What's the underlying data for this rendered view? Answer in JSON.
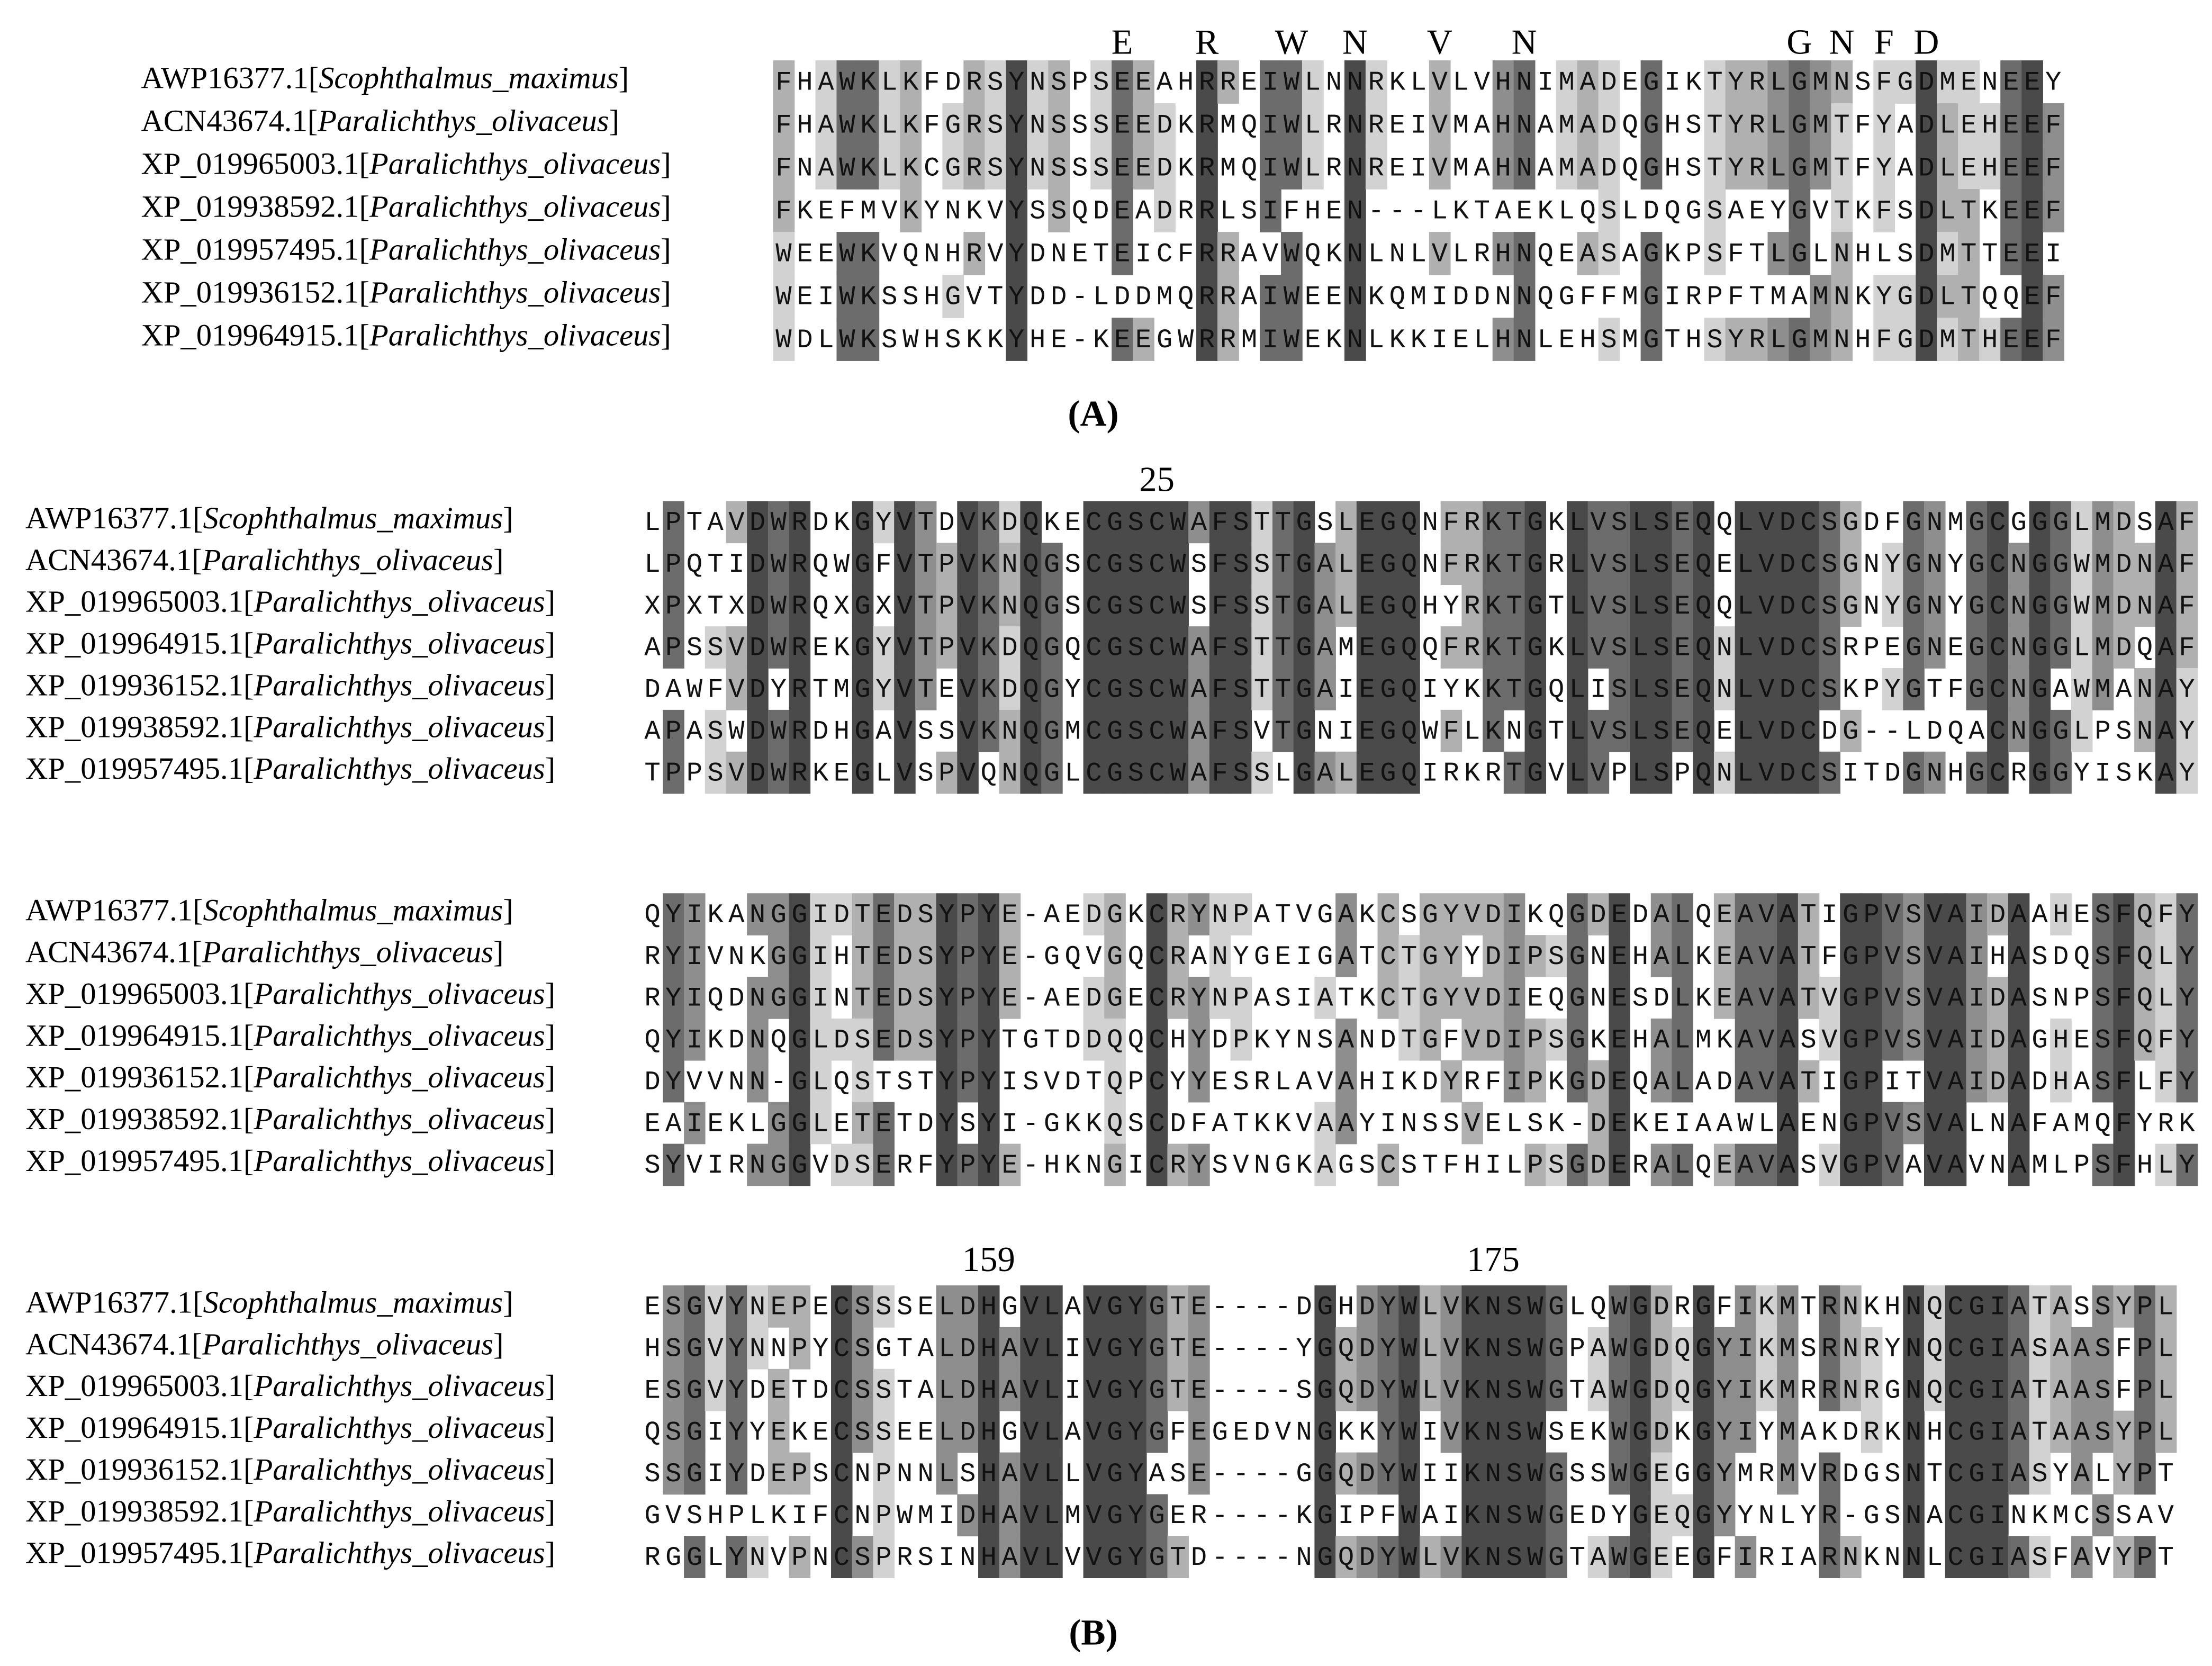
{
  "panels": [
    {
      "label": "(A)",
      "blocks": [
        {
          "annotations": [
            "E",
            "R",
            "W",
            "N",
            "V",
            "N",
            "G",
            "N",
            "F",
            "D"
          ],
          "rows": [
            {
              "name": [
                "AWP16377.1[",
                "Scophthalmus_maximus",
                "]"
              ],
              "sequence": "FHAWKLKFDRSYNSPSEEAHRREIWLNNRKLVLVHNIMADEGIKTYRLGMNSFGDMENEEY"
            },
            {
              "name": [
                "ACN43674.1[",
                "Paralichthys_olivaceus",
                "]"
              ],
              "sequence": "FHAWKLKFGRSYNSSSEEDKRMQIWLRNREIVMAHNAMADQGHSTYRLGMTFYADLEHEEF"
            },
            {
              "name": [
                "XP_019965003.1[",
                "Paralichthys_olivaceus",
                "]"
              ],
              "sequence": "FNAWKLKCGRSYNSSSEEDKRMQIWLRNREIVMAHNAMADQGHSTYRLGMTFYADLEHEEF"
            },
            {
              "name": [
                "XP_019938592.1[",
                "Paralichthys_olivaceus",
                "]"
              ],
              "sequence": "FKEFMVKYNKVYSSQDEADRRLSIFHEN---LKTAEKLQSLDQGSAEYGVTKFSDLTKEEF"
            },
            {
              "name": [
                "XP_019957495.1[",
                "Paralichthys_olivaceus",
                "]"
              ],
              "sequence": "WEEWKVQNHRVYDNETEICFRRAVWQKNLNLVLRHNQEASAGKPSFTLGLNHLSDMTTEEI"
            },
            {
              "name": [
                "XP_019936152.1[",
                "Paralichthys_olivaceus",
                "]"
              ],
              "sequence": "WEIWKSSHGVTYDD-LDDMQRRAIWEENKQMIDDNNQGFFMGIRPFTMAMNKYGDLTQQEF"
            },
            {
              "name": [
                "XP_019964915.1[",
                "Paralichthys_olivaceus",
                "]"
              ],
              "sequence": "WDLWKSWHSKKYHE-KEEGWRRMIWEKNLKKIELHNLEHSMGTHSYRLGMNHFGDMTHEEF"
            }
          ]
        }
      ]
    },
    {
      "label": "(B)",
      "blocks": [
        {
          "annotations": [
            "25"
          ],
          "rows": [
            {
              "name": [
                "AWP16377.1[",
                "Scophthalmus_maximus",
                "]"
              ],
              "sequence": "LPTAVDWRDKGYVTDVKDQKECGSCWAFSTTGSLEGQNFRKTGKLVSLSEQQLVDCSGDFGNMGCGGGLMDSAF"
            },
            {
              "name": [
                "ACN43674.1[",
                "Paralichthys_olivaceus",
                "]"
              ],
              "sequence": "LPQTIDWRQWGFVTPVKNQGSCGSCWSFSSTGALEGQNFRKTGRLVSLSEQELVDCSGNYGNYGCNGGWMDNAF"
            },
            {
              "name": [
                "XP_019965003.1[",
                "Paralichthys_olivaceus",
                "]"
              ],
              "sequence": "XPXTXDWRQXGXVTPVKNQGSCGSCWSFSSTGALEGQHYRKTGTLVSLSEQQLVDCSGNYGNYGCNGGWMDNAF"
            },
            {
              "name": [
                "XP_019964915.1[",
                "Paralichthys_olivaceus",
                "]"
              ],
              "sequence": "APSSVDWREKGYVTPVKDQGQCGSCWAFSTTGAMEGQQFRKTGKLVSLSEQNLVDCSRPEGNEGCNGGLMDQAF"
            },
            {
              "name": [
                "XP_019936152.1[",
                "Paralichthys_olivaceus",
                "]"
              ],
              "sequence": "DAWFVDYRTMGYVTEVKDQGYCGSCWAFSTTGAIEGQIYKKTGQLISLSEQNLVDCSKPYGTFGCNGAWMANAY"
            },
            {
              "name": [
                "XP_019938592.1[",
                "Paralichthys_olivaceus",
                "]"
              ],
              "sequence": "APASWDWRDHGAVSSVKNQGMCGSCWAFSVTGNIEGQWFLKNGTLVSLSEQELVDCDG--LDQACNGGLPSNAY"
            },
            {
              "name": [
                "XP_019957495.1[",
                "Paralichthys_olivaceus",
                "]"
              ],
              "sequence": "TPPSVDWRKEGLVSPVQNQGLCGSCWAFSSLGALEGQIRKRTGVLVPLSPQNLVDCSITDGNHGCRGGYISKAY"
            }
          ]
        },
        {
          "annotations": [],
          "rows": [
            {
              "name": [
                "AWP16377.1[",
                "Scophthalmus_maximus",
                "]"
              ],
              "sequence": "QYIKANGGIDTEDSYPYE-AEDGKCRYNPATVGAKCSGYVDIKQGDEDALQEAVATIGPVSVAIDAAHESFQFY"
            },
            {
              "name": [
                "ACN43674.1[",
                "Paralichthys_olivaceus",
                "]"
              ],
              "sequence": "RYIVNKGGIHTEDSYPYE-GQVGQCRANYGEIGATCTGYYDIPSGNEHALKEAVATFGPVSVAIHASDQSFQLY"
            },
            {
              "name": [
                "XP_019965003.1[",
                "Paralichthys_olivaceus",
                "]"
              ],
              "sequence": "RYIQDNGGINTEDSYPYE-AEDGECRYNPASIATKCTGYVDIEQGNESDLKEAVATVGPVSVAIDASNPSFQLY"
            },
            {
              "name": [
                "XP_019964915.1[",
                "Paralichthys_olivaceus",
                "]"
              ],
              "sequence": "QYIKDNQGLDSEDSYPYTGTDDQQCHYDPKYNSANDTGFVDIPSGKEHALMKAVASVGPVSVAIDAGHESFQFY"
            },
            {
              "name": [
                "XP_019936152.1[",
                "Paralichthys_olivaceus",
                "]"
              ],
              "sequence": "DYVVNN-GLQSTSTYPYISVDTQPCYYESRLAVAHIKDYRFIPKGDEQALADAVATIGPITVAIDADHASFLFY"
            },
            {
              "name": [
                "XP_019938592.1[",
                "Paralichthys_olivaceus",
                "]"
              ],
              "sequence": "EAIEKLGGLETETDYSYI-GKKQSCDFATKKVAAYINSSVELSK-DEKEIAAWLAENGPVSVALNAFAMQFYRK"
            },
            {
              "name": [
                "XP_019957495.1[",
                "Paralichthys_olivaceus",
                "]"
              ],
              "sequence": "SYVIRNGGVDSERFYPYE-HKNGICRYSVNGKAGSCSTFHILPSGDERALQEAVASVGPVAVAVNAMLPSFHLY"
            }
          ]
        },
        {
          "annotations": [
            "159",
            "175"
          ],
          "rows": [
            {
              "name": [
                "AWP16377.1[",
                "Scophthalmus_maximus",
                "]"
              ],
              "sequence": "ESGVYNEPECSSSELDHGVLAVGYGTE----DGHDYWLVKNSWGLQWGDRGFIKMTRNKHNQCGIATASSYPL"
            },
            {
              "name": [
                "ACN43674.1[",
                "Paralichthys_olivaceus",
                "]"
              ],
              "sequence": "HSGVYNNPYCSGTALDHAVLIVGYGTE----YGQDYWLVKNSWGPAWGDQGYIKMSRNRYNQCGIASAASFPL"
            },
            {
              "name": [
                "XP_019965003.1[",
                "Paralichthys_olivaceus",
                "]"
              ],
              "sequence": "ESGVYDETDCSSTALDHAVLIVGYGTE----SGQDYWLVKNSWGTAWGDQGYIKMRRNRGNQCGIATAASFPL"
            },
            {
              "name": [
                "XP_019964915.1[",
                "Paralichthys_olivaceus",
                "]"
              ],
              "sequence": "QSGIYYEKECSSEELDHGVLAVGYGFEGEDVNGKKYWIVKNSWSEKWGDKGYIYMAKDRKNHCGIATAASYPL"
            },
            {
              "name": [
                "XP_019936152.1[",
                "Paralichthys_olivaceus",
                "]"
              ],
              "sequence": "SSGIYDEPSCNPNNLSHAVLLVGYASE----GGQDYWIIKNSWGSSWGEGGYMRMVRDGSNTCGIASYALYPT"
            },
            {
              "name": [
                "XP_019938592.1[",
                "Paralichthys_olivaceus",
                "]"
              ],
              "sequence": "GVSHPLKIFCNPWMIDHAVLMVGYGER----KGIPFWAIKNSWGEDYGEQGYYNLYR-GSNACGINKMCSSAV"
            },
            {
              "name": [
                "XP_019957495.1[",
                "Paralichthys_olivaceus",
                "]"
              ],
              "sequence": "RGGLYNVPNCSPRSINHAVLVVGYGTD----NGQDYWLVKNSWGTAWGEEGFIRIARNKNNLCGIASFAVYPT"
            }
          ]
        }
      ]
    }
  ]
}
